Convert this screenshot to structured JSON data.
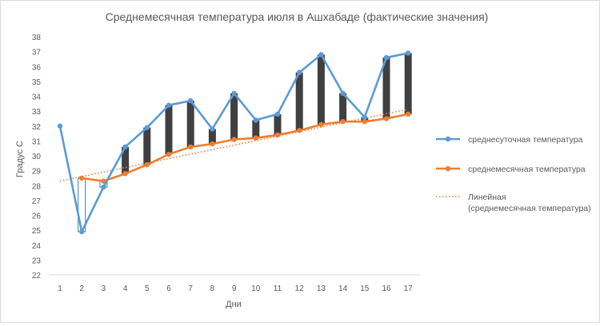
{
  "chart_data": {
    "type": "line",
    "title": "Среднемесячная температура июля в Ашхабаде (фактические значения)",
    "xlabel": "Дни",
    "ylabel": "Градус С",
    "ylim": [
      22,
      38
    ],
    "yticks": [
      22,
      23,
      24,
      25,
      26,
      27,
      28,
      29,
      30,
      31,
      32,
      33,
      34,
      35,
      36,
      37,
      38
    ],
    "categories": [
      "1",
      "2",
      "3",
      "4",
      "5",
      "6",
      "7",
      "8",
      "9",
      "10",
      "11",
      "12",
      "13",
      "14",
      "15",
      "16",
      "17"
    ],
    "grid": false,
    "legend_position": "right",
    "series": [
      {
        "name": "среднесуточная температура",
        "values": [
          32.0,
          24.9,
          27.9,
          30.6,
          31.9,
          33.4,
          33.7,
          31.8,
          34.2,
          32.4,
          32.8,
          35.6,
          36.8,
          34.2,
          32.6,
          36.6,
          36.9
        ],
        "color": "#5b9bd5",
        "marker": "circle"
      },
      {
        "name": "среднемесячная температура",
        "values": [
          null,
          28.5,
          28.3,
          28.8,
          29.4,
          30.1,
          30.6,
          30.8,
          31.1,
          31.2,
          31.4,
          31.7,
          32.1,
          32.3,
          32.3,
          32.5,
          32.8
        ],
        "color": "#ed7d31",
        "marker": "circle"
      },
      {
        "name": "Линейная (среднемесячная температура)",
        "type": "trendline",
        "source": "среднемесячная температура",
        "color": "#ed7d31",
        "style": "dotted"
      }
    ],
    "hi_lo_bars": {
      "up_color": "#404040",
      "down_color": "#ffffff",
      "down_border": "#31859c"
    }
  }
}
